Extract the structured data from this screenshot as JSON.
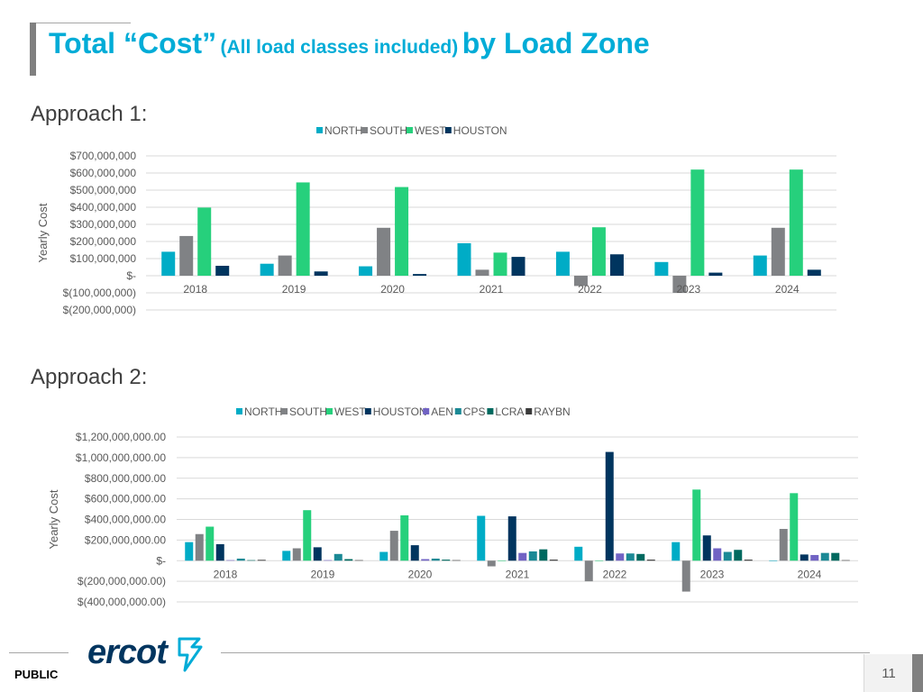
{
  "header": {
    "title_part1": "Total “Cost”",
    "title_part2": "(All load classes included)",
    "title_part3": "by Load Zone"
  },
  "approach1": {
    "label": "Approach 1:"
  },
  "approach2": {
    "label": "Approach 2:"
  },
  "footer": {
    "public_label": "PUBLIC",
    "page_number": "11",
    "logo_text": "ercot"
  },
  "colors": {
    "NORTH": "#00acc6",
    "SOUTH": "#808285",
    "WEST": "#26d07c",
    "HOUSTON": "#00355f",
    "AEN": "#7163c4",
    "CPS": "#1b8995",
    "LCRA": "#00695f",
    "RAYBN": "#3a3a3a",
    "title": "#00acd7"
  },
  "chart_data": [
    {
      "type": "bar",
      "title": "",
      "xlabel": "",
      "ylabel": "Yearly Cost",
      "ylim": [
        -200000000,
        700000000
      ],
      "yticks": [
        700000000,
        600000000,
        500000000,
        400000000,
        300000000,
        200000000,
        100000000,
        0,
        -100000000,
        -200000000
      ],
      "ytick_labels": [
        "$700,000,000",
        "$600,000,000",
        "$500,000,000",
        "$400,000,000",
        "$300,000,000",
        "$200,000,000",
        "$100,000,000",
        "$-",
        "$(100,000,000)",
        "$(200,000,000)"
      ],
      "categories": [
        "2018",
        "2019",
        "2020",
        "2021",
        "2022",
        "2023",
        "2024"
      ],
      "legend_position": "top",
      "series": [
        {
          "name": "NORTH",
          "values": [
            140000000,
            70000000,
            55000000,
            190000000,
            140000000,
            80000000,
            118000000
          ]
        },
        {
          "name": "SOUTH",
          "values": [
            232000000,
            118000000,
            280000000,
            35000000,
            -60000000,
            -100000000,
            280000000
          ]
        },
        {
          "name": "WEST",
          "values": [
            398000000,
            545000000,
            518000000,
            135000000,
            283000000,
            620000000,
            620000000
          ]
        },
        {
          "name": "HOUSTON",
          "values": [
            58000000,
            25000000,
            10000000,
            110000000,
            125000000,
            18000000,
            35000000
          ]
        }
      ]
    },
    {
      "type": "bar",
      "title": "",
      "xlabel": "",
      "ylabel": "Yearly Cost",
      "ylim": [
        -400000000,
        1200000000
      ],
      "yticks": [
        1200000000,
        1000000000,
        800000000,
        600000000,
        400000000,
        200000000,
        0,
        -200000000,
        -400000000
      ],
      "ytick_labels": [
        "$1,200,000,000.00",
        "$1,000,000,000.00",
        "$800,000,000.00",
        "$600,000,000.00",
        "$400,000,000.00",
        "$200,000,000.00",
        "$-",
        "$(200,000,000.00)",
        "$(400,000,000.00)"
      ],
      "categories": [
        "2018",
        "2019",
        "2020",
        "2021",
        "2022",
        "2023",
        "2024"
      ],
      "legend_position": "top",
      "series": [
        {
          "name": "NORTH",
          "values": [
            180000000,
            95000000,
            85000000,
            435000000,
            135000000,
            180000000,
            0
          ]
        },
        {
          "name": "SOUTH",
          "values": [
            258000000,
            120000000,
            290000000,
            -55000000,
            -200000000,
            -300000000,
            308000000
          ]
        },
        {
          "name": "WEST",
          "values": [
            330000000,
            490000000,
            440000000,
            0,
            0,
            690000000,
            655000000
          ]
        },
        {
          "name": "HOUSTON",
          "values": [
            160000000,
            130000000,
            150000000,
            430000000,
            1055000000,
            245000000,
            60000000
          ]
        },
        {
          "name": "AEN",
          "values": [
            5000000,
            5000000,
            15000000,
            75000000,
            70000000,
            120000000,
            55000000
          ]
        },
        {
          "name": "CPS",
          "values": [
            20000000,
            65000000,
            20000000,
            90000000,
            70000000,
            85000000,
            75000000
          ]
        },
        {
          "name": "LCRA",
          "values": [
            5000000,
            15000000,
            10000000,
            110000000,
            65000000,
            105000000,
            75000000
          ]
        },
        {
          "name": "RAYBN",
          "values": [
            8000000,
            5000000,
            5000000,
            10000000,
            10000000,
            10000000,
            5000000
          ]
        }
      ]
    }
  ]
}
